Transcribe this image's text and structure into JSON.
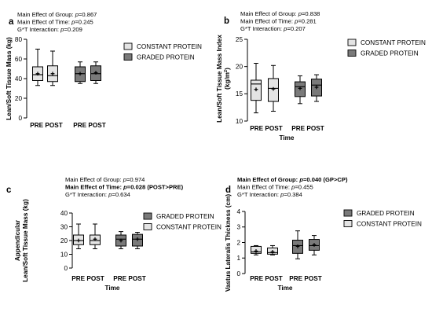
{
  "chart_data": [
    {
      "panel": "a",
      "type": "box",
      "stats": [
        {
          "text": "Main Effect of Group: ",
          "p": "p",
          "value": "=0.867",
          "bold": false
        },
        {
          "text": "Main Effect of Time: ",
          "p": "p",
          "value": "=0.245",
          "bold": false
        },
        {
          "text": "G*T Interaction: ",
          "p": "p",
          "value": "=0.209",
          "bold": false
        }
      ],
      "ylabel_lines": [
        "Lean/Soft Tissue Mass (kg)"
      ],
      "ylabel_sup": "",
      "xlabel": "",
      "ylim": [
        0,
        80
      ],
      "yticks": [
        0,
        20,
        40,
        60,
        80
      ],
      "group_labels": [
        "PRE POST",
        "PRE POST"
      ],
      "legend": [
        {
          "name": "CONSTANT PROTEIN",
          "color": "#e4e4e4"
        },
        {
          "name": "GRADED PROTEIN",
          "color": "#7a7a7a"
        }
      ],
      "boxes": [
        {
          "group": "CONSTANT PROTEIN",
          "time": "PRE",
          "color": "#e4e4e4",
          "min": 33,
          "q1": 38,
          "median": 44,
          "q3": 52,
          "max": 70,
          "mean": 45
        },
        {
          "group": "CONSTANT PROTEIN",
          "time": "POST",
          "color": "#e4e4e4",
          "min": 33,
          "q1": 37,
          "median": 43,
          "q3": 53,
          "max": 68,
          "mean": 45
        },
        {
          "group": "GRADED PROTEIN",
          "time": "PRE",
          "color": "#7a7a7a",
          "min": 35,
          "q1": 37,
          "median": 45,
          "q3": 52,
          "max": 57,
          "mean": 45
        },
        {
          "group": "GRADED PROTEIN",
          "time": "POST",
          "color": "#7a7a7a",
          "min": 35,
          "q1": 38,
          "median": 45,
          "q3": 53,
          "max": 57,
          "mean": 46
        }
      ]
    },
    {
      "panel": "b",
      "type": "box",
      "stats": [
        {
          "text": "Main Effect of Group: ",
          "p": "p",
          "value": "=0.838",
          "bold": false
        },
        {
          "text": "Main Effect of Time: ",
          "p": "p",
          "value": "=0.281",
          "bold": false
        },
        {
          "text": "G*T Interaction: ",
          "p": "p",
          "value": "=0.207",
          "bold": false
        }
      ],
      "ylabel_lines": [
        "Lean/Soft Tissue Mass Index",
        "(kg/m"
      ],
      "ylabel_sup": "2",
      "ylabel_close": ")",
      "xlabel": "Time",
      "ylim": [
        10,
        25
      ],
      "yticks": [
        10,
        15,
        20,
        25
      ],
      "group_labels": [
        "PRE POST",
        "PRE POST"
      ],
      "legend": [
        {
          "name": "CONSTANT PROTEIN",
          "color": "#e4e4e4"
        },
        {
          "name": "GRADED PROTEIN",
          "color": "#7a7a7a"
        }
      ],
      "boxes": [
        {
          "group": "CONSTANT PROTEIN",
          "time": "PRE",
          "color": "#e4e4e4",
          "min": 11.5,
          "q1": 13.8,
          "median": 16.8,
          "q3": 17.5,
          "max": 20.6,
          "mean": 15.8
        },
        {
          "group": "CONSTANT PROTEIN",
          "time": "POST",
          "color": "#e4e4e4",
          "min": 11.8,
          "q1": 13.6,
          "median": 16.0,
          "q3": 17.8,
          "max": 20.2,
          "mean": 15.9
        },
        {
          "group": "GRADED PROTEIN",
          "time": "PRE",
          "color": "#7a7a7a",
          "min": 13.2,
          "q1": 14.5,
          "median": 16.3,
          "q3": 17.2,
          "max": 18.3,
          "mean": 16.0
        },
        {
          "group": "GRADED PROTEIN",
          "time": "POST",
          "color": "#7a7a7a",
          "min": 13.6,
          "q1": 14.6,
          "median": 16.6,
          "q3": 17.7,
          "max": 18.5,
          "mean": 16.2
        }
      ]
    },
    {
      "panel": "c",
      "type": "box",
      "stats": [
        {
          "text": "Main Effect of Group: ",
          "p": "p",
          "value": "=0.974",
          "bold": false
        },
        {
          "text": "Main Effect of Time: ",
          "p": "p",
          "value": "=0.028 (POST>PRE)",
          "bold": true
        },
        {
          "text": "G*T Interaction: ",
          "p": "p",
          "value": "=0.634",
          "bold": false
        }
      ],
      "ylabel_lines": [
        "Appendicular",
        "Lean/Soft Tissue Mass (kg)"
      ],
      "ylabel_sup": "",
      "xlabel": "Time",
      "ylim": [
        0,
        40
      ],
      "yticks": [
        0,
        10,
        20,
        30,
        40
      ],
      "group_labels": [
        "PRE POST",
        "PRE POST"
      ],
      "legend": [
        {
          "name": "GRADED PROTEIN",
          "color": "#7a7a7a"
        },
        {
          "name": "CONSTANT PROTEIN",
          "color": "#e4e4e4"
        }
      ],
      "boxes": [
        {
          "group": "CONSTANT PROTEIN",
          "time": "PRE",
          "color": "#e4e4e4",
          "min": 14,
          "q1": 17,
          "median": 20,
          "q3": 24,
          "max": 32,
          "mean": 20
        },
        {
          "group": "CONSTANT PROTEIN",
          "time": "POST",
          "color": "#e4e4e4",
          "min": 14,
          "q1": 17,
          "median": 20,
          "q3": 24,
          "max": 32,
          "mean": 21
        },
        {
          "group": "GRADED PROTEIN",
          "time": "PRE",
          "color": "#7a7a7a",
          "min": 14,
          "q1": 16,
          "median": 21,
          "q3": 24,
          "max": 26.5,
          "mean": 20
        },
        {
          "group": "GRADED PROTEIN",
          "time": "POST",
          "color": "#7a7a7a",
          "min": 14,
          "q1": 16,
          "median": 21,
          "q3": 24.5,
          "max": 26,
          "mean": 21
        }
      ]
    },
    {
      "panel": "d",
      "type": "box",
      "stats": [
        {
          "text": "Main Effect of Group: ",
          "p": "p",
          "value": "=0.040 (GP>CP)",
          "bold": true
        },
        {
          "text": "Main Effect of Time: ",
          "p": "p",
          "value": "=0.455",
          "bold": false
        },
        {
          "text": "G*T Interaction: ",
          "p": "p",
          "value": "=0.384",
          "bold": false
        }
      ],
      "ylabel_lines": [
        "Vastus Lateralis Thickness (cm)"
      ],
      "ylabel_sup": "",
      "xlabel": "Time",
      "ylim": [
        0,
        4
      ],
      "yticks": [
        0,
        1,
        2,
        3,
        4
      ],
      "group_labels": [
        "PRE POST",
        "PRE POST"
      ],
      "legend": [
        {
          "name": "GRADED PROTEIN",
          "color": "#7a7a7a"
        },
        {
          "name": "CONSTANT PROTEIN",
          "color": "#e4e4e4"
        }
      ],
      "boxes": [
        {
          "group": "CONSTANT PROTEIN",
          "time": "PRE",
          "color": "#e4e4e4",
          "min": 1.2,
          "q1": 1.3,
          "median": 1.4,
          "q3": 1.75,
          "max": 1.8,
          "mean": 1.45
        },
        {
          "group": "CONSTANT PROTEIN",
          "time": "POST",
          "color": "#e4e4e4",
          "min": 1.2,
          "q1": 1.25,
          "median": 1.35,
          "q3": 1.65,
          "max": 1.8,
          "mean": 1.4
        },
        {
          "group": "GRADED PROTEIN",
          "time": "PRE",
          "color": "#7a7a7a",
          "min": 0.95,
          "q1": 1.3,
          "median": 1.8,
          "q3": 2.15,
          "max": 2.75,
          "mean": 1.75
        },
        {
          "group": "GRADED PROTEIN",
          "time": "POST",
          "color": "#7a7a7a",
          "min": 1.2,
          "q1": 1.5,
          "median": 1.8,
          "q3": 2.2,
          "max": 2.45,
          "mean": 1.85
        }
      ]
    }
  ]
}
